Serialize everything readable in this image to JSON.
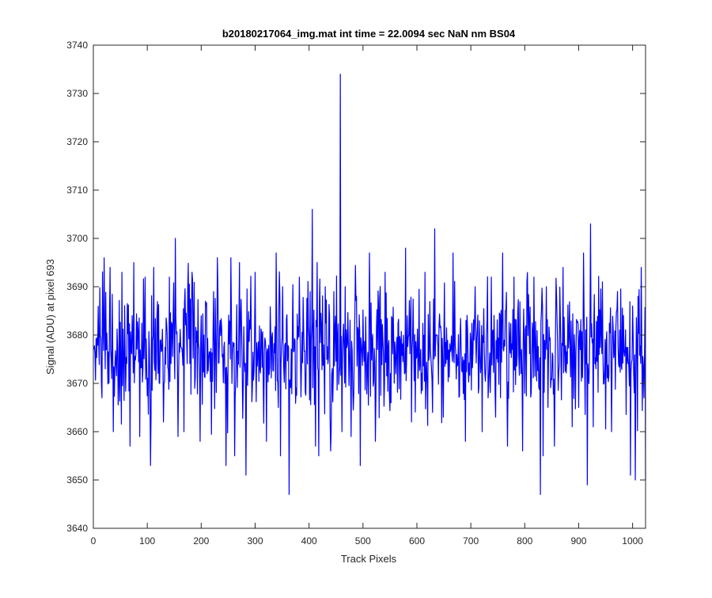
{
  "chart_data": {
    "type": "line",
    "title": "b20180217064_img.mat int time = 22.0094 sec  NaN nm BS04",
    "xlabel": "Track Pixels",
    "ylabel": "Signal (ADU) at pixel 693",
    "xlim": [
      0,
      1024
    ],
    "ylim": [
      3640,
      3740
    ],
    "xticks": [
      0,
      100,
      200,
      300,
      400,
      500,
      600,
      700,
      800,
      900,
      1000
    ],
    "yticks": [
      3640,
      3650,
      3660,
      3670,
      3680,
      3690,
      3700,
      3710,
      3720,
      3730,
      3740
    ],
    "grid": false,
    "legend": "none",
    "line_color": "#0000ff",
    "noise": {
      "center": 3677,
      "spread": 6.5,
      "x_start": 1,
      "x_end": 1024
    },
    "series": [
      {
        "points": [
          [
            1,
            3677
          ],
          [
            16,
            3667
          ],
          [
            20,
            3696
          ],
          [
            31,
            3694
          ],
          [
            37,
            3660
          ],
          [
            53,
            3693
          ],
          [
            68,
            3657
          ],
          [
            75,
            3695
          ],
          [
            86,
            3659
          ],
          [
            96,
            3692
          ],
          [
            106,
            3653
          ],
          [
            112,
            3694
          ],
          [
            130,
            3662
          ],
          [
            141,
            3692
          ],
          [
            152,
            3700
          ],
          [
            168,
            3660
          ],
          [
            183,
            3693
          ],
          [
            198,
            3658
          ],
          [
            230,
            3696
          ],
          [
            246,
            3653
          ],
          [
            255,
            3696
          ],
          [
            262,
            3655
          ],
          [
            271,
            3695
          ],
          [
            283,
            3651
          ],
          [
            300,
            3693
          ],
          [
            321,
            3658
          ],
          [
            339,
            3697
          ],
          [
            347,
            3655
          ],
          [
            351,
            3690
          ],
          [
            363,
            3647
          ],
          [
            382,
            3692
          ],
          [
            402,
            3689
          ],
          [
            406,
            3706
          ],
          [
            412,
            3657
          ],
          [
            415,
            3695
          ],
          [
            418,
            3655
          ],
          [
            430,
            3690
          ],
          [
            440,
            3656
          ],
          [
            458,
            3734
          ],
          [
            461,
            3660
          ],
          [
            467,
            3690
          ],
          [
            478,
            3659
          ],
          [
            495,
            3653
          ],
          [
            512,
            3697
          ],
          [
            523,
            3658
          ],
          [
            541,
            3693
          ],
          [
            552,
            3666
          ],
          [
            579,
            3698
          ],
          [
            590,
            3662
          ],
          [
            615,
            3693
          ],
          [
            629,
            3664
          ],
          [
            633,
            3702
          ],
          [
            649,
            3663
          ],
          [
            667,
            3697
          ],
          [
            690,
            3658
          ],
          [
            708,
            3690
          ],
          [
            721,
            3660
          ],
          [
            738,
            3692
          ],
          [
            746,
            3663
          ],
          [
            759,
            3697
          ],
          [
            768,
            3657
          ],
          [
            780,
            3692
          ],
          [
            796,
            3656
          ],
          [
            804,
            3691
          ],
          [
            817,
            3692
          ],
          [
            829,
            3647
          ],
          [
            834,
            3655
          ],
          [
            840,
            3690
          ],
          [
            855,
            3657
          ],
          [
            871,
            3694
          ],
          [
            888,
            3661
          ],
          [
            909,
            3697
          ],
          [
            916,
            3649
          ],
          [
            922,
            3703
          ],
          [
            927,
            3661
          ],
          [
            944,
            3691
          ],
          [
            961,
            3660
          ],
          [
            976,
            3681
          ],
          [
            996,
            3651
          ],
          [
            1000,
            3686
          ],
          [
            1005,
            3650
          ],
          [
            1010,
            3688
          ],
          [
            1016,
            3694
          ],
          [
            1021,
            3667
          ],
          [
            1024,
            3650
          ]
        ]
      }
    ]
  }
}
